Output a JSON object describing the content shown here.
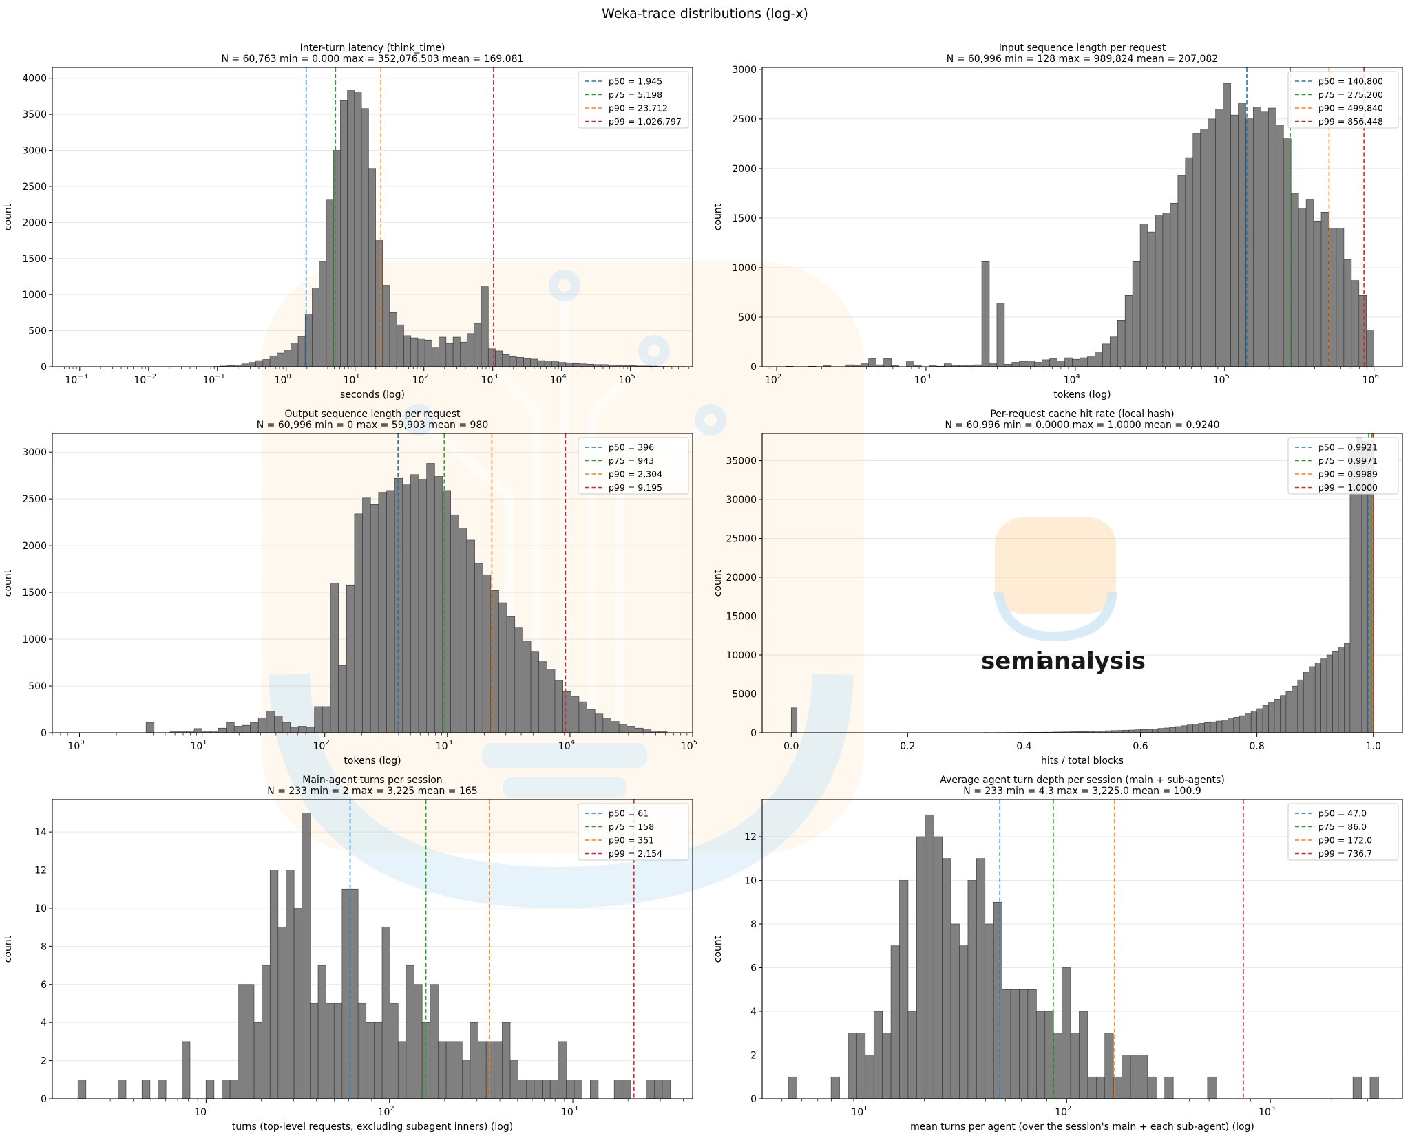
{
  "figure": {
    "suptitle": "Weka-trace distributions  (log-x)"
  },
  "watermark": {
    "brand_left": "semi",
    "brand_right": "analysis"
  },
  "chart_data": [
    {
      "type": "bar",
      "title_line1": "Inter-turn latency (think_time)",
      "title_line2": "N = 60,763     min = 0.000     max = 352,076.503     mean = 169.081",
      "xlabel": "seconds (log)",
      "ylabel": "count",
      "xscale": "log",
      "xlim": [
        0.0004,
        800000
      ],
      "ylim": [
        0,
        4150
      ],
      "yticks": [
        0,
        500,
        1000,
        1500,
        2000,
        2500,
        3000,
        3500,
        4000
      ],
      "xticks": [
        {
          "v": 0.001,
          "b": "10",
          "e": "−3"
        },
        {
          "v": 0.01,
          "b": "10",
          "e": "−2"
        },
        {
          "v": 0.1,
          "b": "10",
          "e": "−1"
        },
        {
          "v": 1,
          "b": "10",
          "e": "0"
        },
        {
          "v": 10,
          "b": "10",
          "e": "1"
        },
        {
          "v": 100,
          "b": "10",
          "e": "2"
        },
        {
          "v": 1000,
          "b": "10",
          "e": "3"
        },
        {
          "v": 10000,
          "b": "10",
          "e": "4"
        },
        {
          "v": 100000,
          "b": "10",
          "e": "5"
        }
      ],
      "bin_start": 0.001,
      "bin_end": 800000,
      "counts": [
        0,
        0,
        0,
        0,
        0,
        0,
        0,
        0,
        0,
        0,
        0,
        0,
        0,
        0,
        0,
        0,
        0,
        0,
        0,
        5,
        10,
        15,
        25,
        40,
        60,
        85,
        100,
        150,
        190,
        230,
        330,
        420,
        730,
        1090,
        1460,
        2320,
        3000,
        3690,
        3830,
        3800,
        3580,
        2750,
        1750,
        1130,
        750,
        580,
        430,
        400,
        390,
        370,
        260,
        410,
        320,
        410,
        340,
        460,
        600,
        1110,
        250,
        220,
        170,
        140,
        130,
        110,
        105,
        85,
        80,
        70,
        60,
        55,
        45,
        40,
        35,
        30,
        30,
        25,
        20,
        20,
        15,
        10,
        10,
        8,
        5,
        4,
        3,
        3,
        2
      ],
      "percentiles": [
        {
          "name": "p50 = 1.945",
          "v": 1.945,
          "color": "#1f77b4"
        },
        {
          "name": "p75 = 5.198",
          "v": 5.198,
          "color": "#2ca02c"
        },
        {
          "name": "p90 = 23.712",
          "v": 23.712,
          "color": "#ff7f0e"
        },
        {
          "name": "p99 = 1,026.797",
          "v": 1026.797,
          "color": "#d62728"
        }
      ]
    },
    {
      "type": "bar",
      "title_line1": "Input sequence length per request",
      "title_line2": "N = 60,996     min = 128     max = 989,824     mean = 207,082",
      "xlabel": "tokens (log)",
      "ylabel": "count",
      "xscale": "log",
      "xlim": [
        80,
        1550000
      ],
      "ylim": [
        0,
        3020
      ],
      "yticks": [
        0,
        500,
        1000,
        1500,
        2000,
        2500,
        3000
      ],
      "xticks": [
        {
          "v": 100,
          "b": "10",
          "e": "2"
        },
        {
          "v": 1000,
          "b": "10",
          "e": "3"
        },
        {
          "v": 10000,
          "b": "10",
          "e": "4"
        },
        {
          "v": 100000,
          "b": "10",
          "e": "5"
        },
        {
          "v": 1000000,
          "b": "10",
          "e": "6"
        }
      ],
      "bin_start": 115,
      "bin_end": 1000000,
      "counts": [
        5,
        0,
        0,
        5,
        0,
        10,
        0,
        0,
        20,
        10,
        30,
        80,
        20,
        80,
        10,
        0,
        60,
        10,
        0,
        10,
        5,
        30,
        10,
        15,
        10,
        20,
        1060,
        40,
        640,
        25,
        45,
        55,
        60,
        45,
        70,
        80,
        60,
        90,
        75,
        90,
        100,
        150,
        230,
        300,
        470,
        720,
        1060,
        1440,
        1360,
        1530,
        1550,
        1650,
        1930,
        2110,
        2350,
        2400,
        2500,
        2600,
        2860,
        2540,
        2660,
        2510,
        2620,
        2570,
        2610,
        2440,
        2300,
        1750,
        1600,
        1690,
        1470,
        1560,
        1400,
        1400,
        1080,
        870,
        720,
        370
      ],
      "percentiles": [
        {
          "name": "p50 = 140,800",
          "v": 140800,
          "color": "#1f77b4"
        },
        {
          "name": "p75 = 275,200",
          "v": 275200,
          "color": "#2ca02c"
        },
        {
          "name": "p90 = 499,840",
          "v": 499840,
          "color": "#ff7f0e"
        },
        {
          "name": "p99 = 856,448",
          "v": 856448,
          "color": "#d62728"
        }
      ]
    },
    {
      "type": "bar",
      "title_line1": "Output sequence length per request",
      "title_line2": "N = 60,996     min = 0     max = 59,903     mean = 980",
      "xlabel": "tokens (log)",
      "ylabel": "count",
      "xscale": "log",
      "xlim": [
        0.6,
        100000
      ],
      "ylim": [
        0,
        3200
      ],
      "yticks": [
        0,
        500,
        1000,
        1500,
        2000,
        2500,
        3000
      ],
      "xticks": [
        {
          "v": 1,
          "b": "10",
          "e": "0"
        },
        {
          "v": 10,
          "b": "10",
          "e": "1"
        },
        {
          "v": 100,
          "b": "10",
          "e": "2"
        },
        {
          "v": 1000,
          "b": "10",
          "e": "3"
        },
        {
          "v": 10000,
          "b": "10",
          "e": "4"
        },
        {
          "v": 100000,
          "b": "10",
          "e": "5"
        }
      ],
      "bin_start": 0.9,
      "bin_end": 62000,
      "counts": [
        0,
        0,
        0,
        0,
        0,
        0,
        0,
        0,
        0,
        110,
        0,
        0,
        10,
        10,
        20,
        45,
        10,
        20,
        50,
        110,
        70,
        80,
        110,
        160,
        230,
        180,
        110,
        60,
        70,
        60,
        280,
        280,
        1600,
        720,
        1580,
        2340,
        2510,
        2440,
        2570,
        2590,
        2720,
        2650,
        2760,
        2710,
        2880,
        2740,
        2590,
        2330,
        2180,
        2060,
        1810,
        1690,
        1520,
        1390,
        1240,
        1120,
        980,
        870,
        760,
        680,
        560,
        440,
        390,
        330,
        250,
        200,
        150,
        120,
        90,
        70,
        50,
        40,
        20,
        10
      ],
      "percentiles": [
        {
          "name": "p50 = 396",
          "v": 396,
          "color": "#1f77b4"
        },
        {
          "name": "p75 = 943",
          "v": 943,
          "color": "#2ca02c"
        },
        {
          "name": "p90 = 2,304",
          "v": 2304,
          "color": "#ff7f0e"
        },
        {
          "name": "p99 = 9,195",
          "v": 9195,
          "color": "#d62728"
        }
      ]
    },
    {
      "type": "bar",
      "title_line1": "Per-request cache hit rate (local hash)",
      "title_line2": "N = 60,996     min = 0.0000     max = 1.0000     mean = 0.9240",
      "xlabel": "hits / total blocks",
      "ylabel": "count",
      "xscale": "linear",
      "xlim": [
        -0.05,
        1.05
      ],
      "ylim": [
        0,
        38500
      ],
      "yticks": [
        0,
        5000,
        10000,
        15000,
        20000,
        25000,
        30000,
        35000
      ],
      "xticks": [
        {
          "v": 0,
          "b": "0.0"
        },
        {
          "v": 0.2,
          "b": "0.2"
        },
        {
          "v": 0.4,
          "b": "0.4"
        },
        {
          "v": 0.6,
          "b": "0.6"
        },
        {
          "v": 0.8,
          "b": "0.8"
        },
        {
          "v": 1.0,
          "b": "1.0"
        }
      ],
      "bin_start": 0,
      "bin_end": 1.0,
      "counts": [
        3200,
        0,
        0,
        0,
        0,
        0,
        0,
        0,
        0,
        0,
        0,
        0,
        0,
        0,
        0,
        0,
        0,
        0,
        0,
        0,
        0,
        0,
        0,
        0,
        0,
        0,
        0,
        0,
        0,
        0,
        10,
        20,
        10,
        30,
        20,
        30,
        30,
        40,
        40,
        50,
        50,
        60,
        60,
        70,
        70,
        90,
        100,
        110,
        130,
        140,
        160,
        180,
        200,
        230,
        260,
        280,
        300,
        320,
        350,
        380,
        410,
        450,
        500,
        560,
        620,
        700,
        800,
        900,
        1000,
        1100,
        1200,
        1300,
        1400,
        1500,
        1650,
        1800,
        2000,
        2200,
        2500,
        2800,
        3100,
        3500,
        3900,
        4300,
        4800,
        5300,
        6000,
        6800,
        7800,
        8500,
        9000,
        9500,
        10000,
        10500,
        11000,
        11500,
        36200,
        38000,
        37500,
        37000
      ],
      "percentiles": [
        {
          "name": "p50 = 0.9921",
          "v": 0.9921,
          "color": "#1f77b4"
        },
        {
          "name": "p75 = 0.9971",
          "v": 0.9971,
          "color": "#2ca02c"
        },
        {
          "name": "p90 = 0.9989",
          "v": 0.9989,
          "color": "#ff7f0e"
        },
        {
          "name": "p99 = 1.0000",
          "v": 1.0,
          "color": "#d62728"
        }
      ]
    },
    {
      "type": "bar",
      "title_line1": "Main-agent turns per session",
      "title_line2": "N = 233     min = 2     max = 3,225     mean = 165",
      "xlabel": "turns (top-level requests, excluding subagent inners) (log)",
      "ylabel": "count",
      "xscale": "log",
      "xlim": [
        1.45,
        4500
      ],
      "ylim": [
        0,
        15.7
      ],
      "yticks": [
        0,
        2,
        4,
        6,
        8,
        10,
        12,
        14
      ],
      "xticks": [
        {
          "v": 10,
          "b": "10",
          "e": "1"
        },
        {
          "v": 100,
          "b": "10",
          "e": "2"
        },
        {
          "v": 1000,
          "b": "10",
          "e": "3"
        }
      ],
      "bin_start": 2,
      "bin_end": 3400,
      "counts": [
        1,
        0,
        0,
        0,
        0,
        1,
        0,
        0,
        1,
        0,
        1,
        0,
        0,
        3,
        0,
        0,
        1,
        0,
        1,
        1,
        6,
        6,
        4,
        7,
        12,
        9,
        12,
        10,
        15,
        5,
        7,
        5,
        5,
        11,
        11,
        5,
        4,
        4,
        9,
        5,
        3,
        7,
        6,
        4,
        6,
        3,
        3,
        3,
        2,
        4,
        3,
        3,
        3,
        4,
        2,
        1,
        1,
        1,
        1,
        1,
        3,
        1,
        1,
        0,
        1,
        0,
        0,
        1,
        1,
        0,
        0,
        1,
        1,
        1
      ],
      "percentiles": [
        {
          "name": "p50 = 61",
          "v": 61,
          "color": "#1f77b4"
        },
        {
          "name": "p75 = 158",
          "v": 158,
          "color": "#2ca02c"
        },
        {
          "name": "p90 = 351",
          "v": 351,
          "color": "#ff7f0e"
        },
        {
          "name": "p99 = 2,154",
          "v": 2154,
          "color": "#d62728"
        }
      ]
    },
    {
      "type": "bar",
      "title_line1": "Average agent turn depth per session (main + sub-agents)",
      "title_line2": "N = 233     min = 4.3     max = 3,225.0     mean = 100.9",
      "xlabel": "mean turns per agent (over the session's main + each sub-agent) (log)",
      "ylabel": "count",
      "xscale": "log",
      "xlim": [
        3.2,
        4450
      ],
      "ylim": [
        0,
        13.7
      ],
      "yticks": [
        0,
        2,
        4,
        6,
        8,
        10,
        12
      ],
      "xticks": [
        {
          "v": 10,
          "b": "10",
          "e": "1"
        },
        {
          "v": 100,
          "b": "10",
          "e": "2"
        },
        {
          "v": 1000,
          "b": "10",
          "e": "3"
        }
      ],
      "bin_start": 4.3,
      "bin_end": 3400,
      "counts": [
        1,
        0,
        0,
        0,
        0,
        1,
        0,
        3,
        3,
        2,
        4,
        3,
        7,
        10,
        4,
        12,
        13,
        12,
        11,
        8,
        7,
        10,
        11,
        8,
        9,
        5,
        5,
        5,
        5,
        4,
        4,
        3,
        6,
        3,
        4,
        1,
        1,
        3,
        1,
        2,
        2,
        2,
        1,
        0,
        1,
        0,
        0,
        0,
        0,
        1,
        0,
        0,
        0,
        0,
        0,
        0,
        0,
        0,
        0,
        0,
        0,
        0,
        0,
        0,
        0,
        0,
        1,
        0,
        1
      ],
      "percentiles": [
        {
          "name": "p50 = 47.0",
          "v": 47.0,
          "color": "#1f77b4"
        },
        {
          "name": "p75 = 86.0",
          "v": 86.0,
          "color": "#2ca02c"
        },
        {
          "name": "p90 = 172.0",
          "v": 172.0,
          "color": "#ff7f0e"
        },
        {
          "name": "p99 = 736.7",
          "v": 736.7,
          "color": "#d62728"
        }
      ]
    }
  ]
}
